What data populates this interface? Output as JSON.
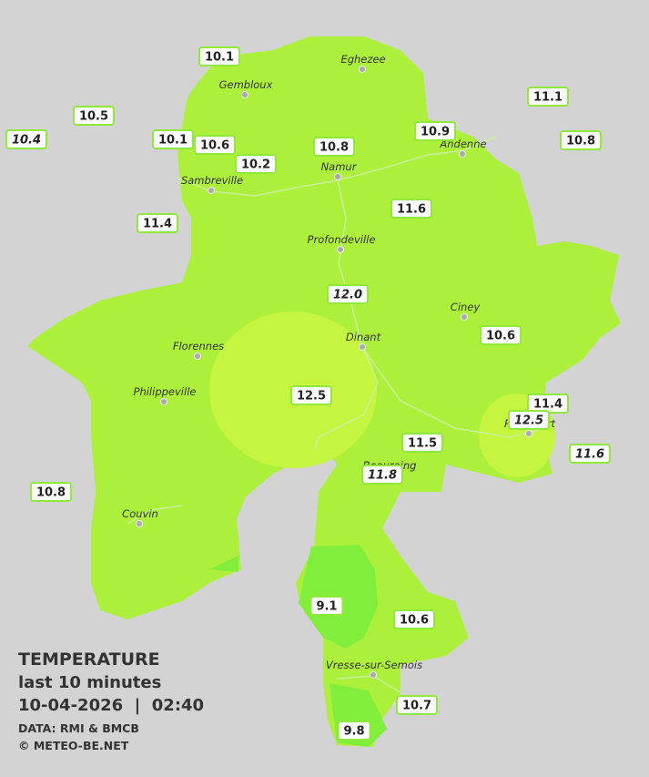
{
  "legend": {
    "title": "TEMPERATURE",
    "subtitle": "last 10 minutes",
    "datetime": "10-04-2026  |  02:40",
    "source": "DATA: RMI & BMCB",
    "credit": "© METEO-BE.NET"
  },
  "towns": [
    {
      "name": "Eghezee"
    },
    {
      "name": "Gembloux"
    },
    {
      "name": "Andenne"
    },
    {
      "name": "Namur"
    },
    {
      "name": "Sambreville"
    },
    {
      "name": "Profondeville"
    },
    {
      "name": "Ciney"
    },
    {
      "name": "Dinant"
    },
    {
      "name": "Florennes"
    },
    {
      "name": "Philippeville"
    },
    {
      "name": "Rochefort"
    },
    {
      "name": "Beauraing"
    },
    {
      "name": "Couvin"
    },
    {
      "name": "Vresse-sur-Semois"
    }
  ],
  "stations": [
    {
      "label": "10.1"
    },
    {
      "label": "10.5"
    },
    {
      "label": "10.4",
      "italic": true
    },
    {
      "label": "10.1"
    },
    {
      "label": "10.6"
    },
    {
      "label": "10.2"
    },
    {
      "label": "10.8"
    },
    {
      "label": "10.9"
    },
    {
      "label": "11.1"
    },
    {
      "label": "10.8"
    },
    {
      "label": "11.4"
    },
    {
      "label": "11.6"
    },
    {
      "label": "12.0",
      "italic": true
    },
    {
      "label": "10.6"
    },
    {
      "label": "12.5"
    },
    {
      "label": "11.4"
    },
    {
      "label": "12.5",
      "italic": true
    },
    {
      "label": "11.5"
    },
    {
      "label": "11.8",
      "italic": true
    },
    {
      "label": "11.6",
      "italic": true
    },
    {
      "label": "10.8"
    },
    {
      "label": "9.1"
    },
    {
      "label": "10.6"
    },
    {
      "label": "10.7"
    },
    {
      "label": "9.8"
    }
  ]
}
